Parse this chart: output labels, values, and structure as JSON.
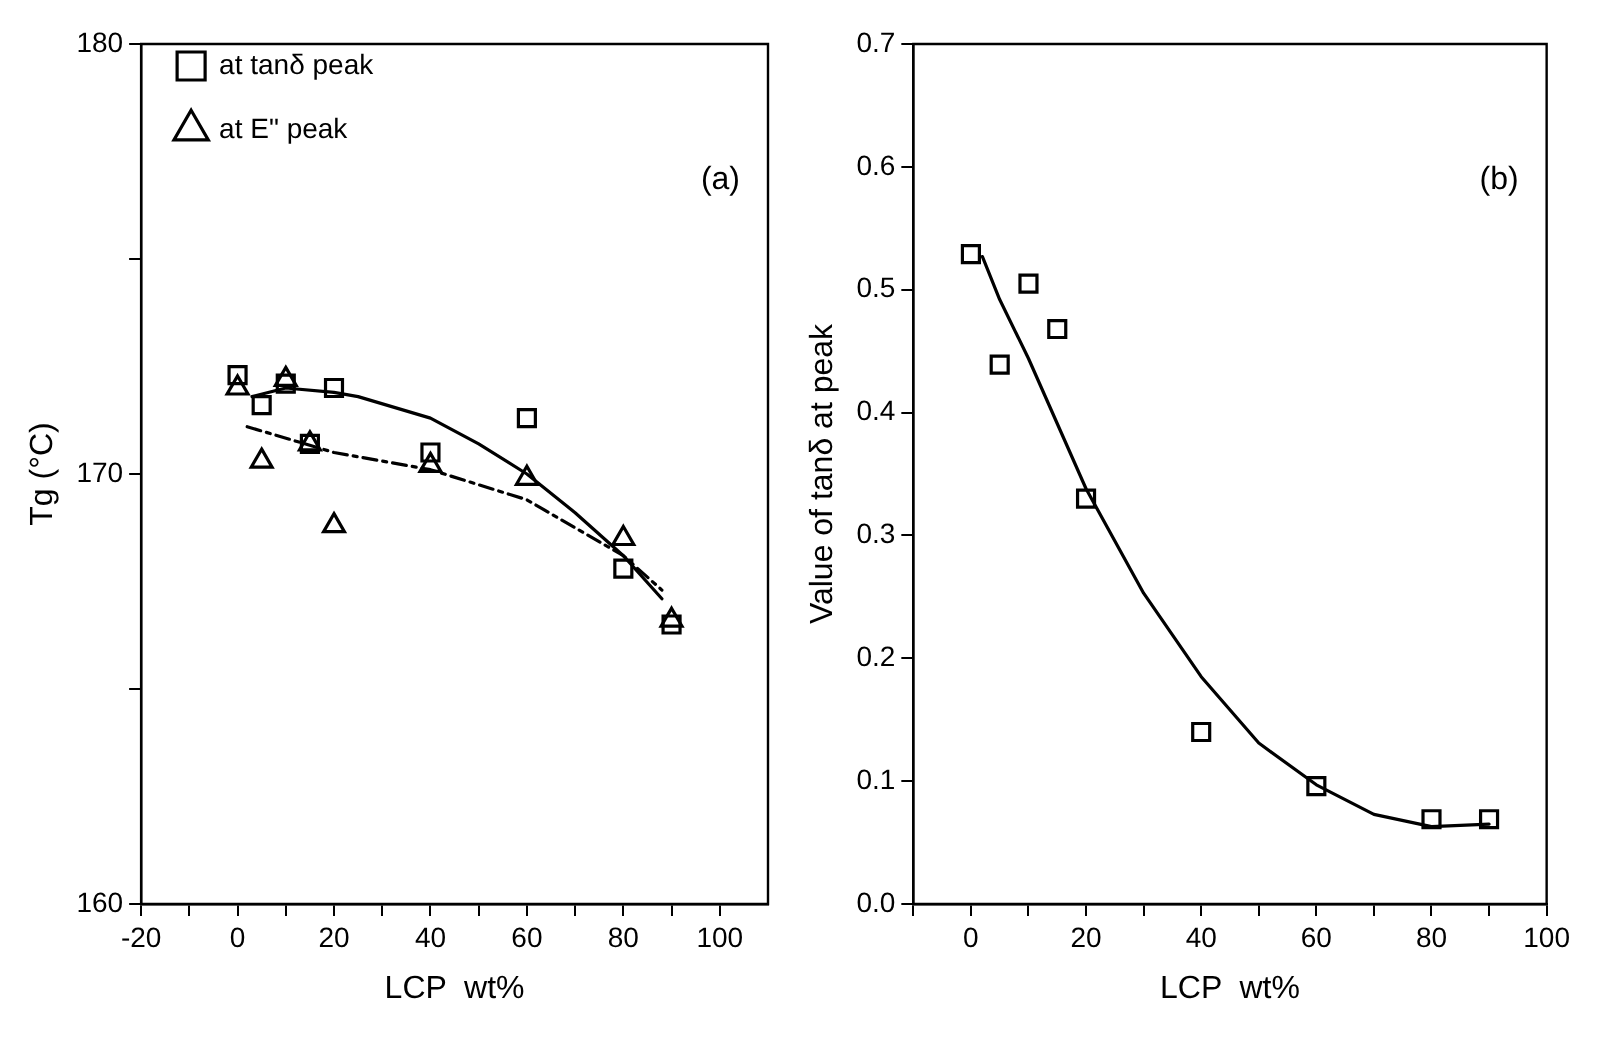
{
  "chart_data": [
    {
      "type": "scatter",
      "xlabel": "LCP  wt%",
      "ylabel": "Tg (°C)",
      "xlim": [
        -20,
        110
      ],
      "ylim": [
        160,
        180
      ],
      "xticks": [
        -20,
        {
          "value": -10,
          "label": null
        },
        0,
        {
          "value": 10,
          "label": null
        },
        20,
        {
          "value": 30,
          "label": null
        },
        40,
        {
          "value": 50,
          "label": null
        },
        60,
        {
          "value": 70,
          "label": null
        },
        80,
        {
          "value": 90,
          "label": null
        },
        100
      ],
      "yticks": [
        160,
        {
          "value": 165,
          "label": null
        },
        170,
        {
          "value": 175,
          "label": null
        },
        180
      ],
      "legend": "top left",
      "annotations": [
        "(a)"
      ],
      "series": [
        {
          "name": "at tanδ peak",
          "type": "scatter",
          "marker": "square",
          "color": "#000000",
          "x": [
            0,
            5,
            10,
            15,
            20,
            40,
            60,
            80,
            90
          ],
          "values": [
            172.3,
            171.6,
            172.1,
            170.7,
            172.0,
            170.5,
            171.3,
            167.8,
            166.5
          ]
        },
        {
          "name": "at E\" peak",
          "type": "scatter",
          "marker": "triangle",
          "color": "#000000",
          "x": [
            0,
            5,
            10,
            15,
            20,
            40,
            60,
            80,
            90
          ],
          "values": [
            172.0,
            170.3,
            172.2,
            170.7,
            168.8,
            170.2,
            169.9,
            168.5,
            166.6
          ]
        },
        {
          "type": "line",
          "marker": "none",
          "line_style": "solid",
          "color": "#000000",
          "x": [
            3,
            10,
            20,
            25,
            40,
            50,
            60,
            70,
            80,
            88
          ],
          "values": [
            171.8,
            172.0,
            171.9,
            171.8,
            171.3,
            170.7,
            170.0,
            169.1,
            168.1,
            167.1
          ]
        },
        {
          "type": "line",
          "marker": "none",
          "line_style": "dashed",
          "color": "#000000",
          "x": [
            2,
            20,
            40,
            60,
            80,
            88
          ],
          "values": [
            171.1,
            170.5,
            170.1,
            169.4,
            168.1,
            167.3
          ]
        }
      ]
    },
    {
      "type": "scatter",
      "xlabel": "LCP  wt%",
      "ylabel": "Value of tanδ at peak",
      "xlim": [
        -10,
        100
      ],
      "ylim": [
        0,
        0.7
      ],
      "xticks": [
        {
          "value": -10,
          "label": null
        },
        0,
        {
          "value": 10,
          "label": null
        },
        20,
        {
          "value": 30,
          "label": null
        },
        40,
        {
          "value": 50,
          "label": null
        },
        60,
        {
          "value": 70,
          "label": null
        },
        80,
        {
          "value": 90,
          "label": null
        },
        100
      ],
      "yticks": [
        {
          "value": 0,
          "label": "0.0"
        },
        0.1,
        0.2,
        0.3,
        0.4,
        0.5,
        0.6,
        0.7
      ],
      "annotations": [
        "(b)"
      ],
      "series": [
        {
          "type": "scatter",
          "marker": "square",
          "color": "#000000",
          "x": [
            0,
            5,
            10,
            15,
            20,
            40,
            60,
            80,
            90
          ],
          "values": [
            0.529,
            0.439,
            0.505,
            0.468,
            0.33,
            0.14,
            0.096,
            0.069,
            0.069
          ]
        },
        {
          "type": "line",
          "marker": "none",
          "line_style": "solid",
          "color": "#000000",
          "x": [
            2,
            5,
            10,
            20,
            30,
            40,
            50,
            60,
            70,
            80,
            90
          ],
          "values": [
            0.527,
            0.492,
            0.444,
            0.338,
            0.253,
            0.185,
            0.131,
            0.097,
            0.073,
            0.063,
            0.065
          ]
        }
      ]
    }
  ]
}
